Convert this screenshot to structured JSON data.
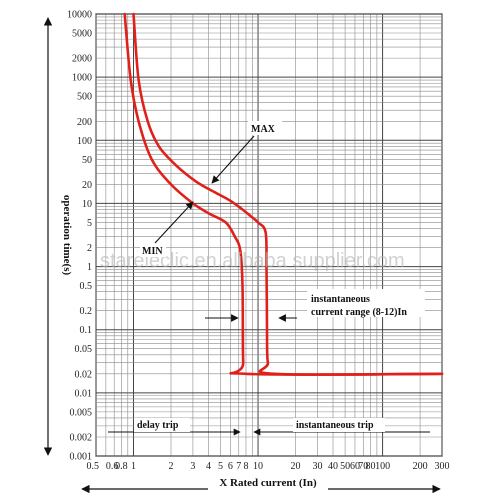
{
  "chart_data": {
    "type": "line",
    "x_scale": "log",
    "y_scale": "log",
    "xlim": [
      0.5,
      300
    ],
    "ylim": [
      0.001,
      10000
    ],
    "grid": true,
    "xlabel": "X Rated current (In)",
    "ylabel": "operation time(s)",
    "x_ticks": [
      "0.5",
      "0.6",
      "0.8",
      "1",
      "2",
      "3",
      "4",
      "5",
      "6",
      "7",
      "8",
      "10",
      "20",
      "30",
      "40",
      "50",
      "60",
      "70",
      "80",
      "100",
      "200",
      "300"
    ],
    "y_ticks": [
      "10000",
      "5000",
      "2000",
      "1000",
      "500",
      "200",
      "100",
      "50",
      "20",
      "10",
      "5",
      "2",
      "1",
      "0.5",
      "0.2",
      "0.1",
      "0.05",
      "0.02",
      "0.01",
      "0.005",
      "0.002",
      "0.001"
    ],
    "series": [
      {
        "name": "MAX",
        "color": "#e0211b",
        "points": [
          [
            1.0,
            10000
          ],
          [
            1.1,
            900
          ],
          [
            1.3,
            200
          ],
          [
            1.6,
            80
          ],
          [
            2.2,
            40
          ],
          [
            3.2,
            22
          ],
          [
            4.5,
            15
          ],
          [
            6.0,
            11
          ],
          [
            7.5,
            8
          ],
          [
            9.0,
            6
          ],
          [
            10.0,
            5
          ],
          [
            11.5,
            3.5
          ],
          [
            11.7,
            1
          ],
          [
            11.8,
            0.1
          ],
          [
            12.0,
            0.03
          ],
          [
            13.5,
            0.02
          ],
          [
            300,
            0.02
          ]
        ]
      },
      {
        "name": "MIN",
        "color": "#e0211b",
        "points": [
          [
            0.85,
            10000
          ],
          [
            0.95,
            900
          ],
          [
            1.1,
            200
          ],
          [
            1.4,
            50
          ],
          [
            2.0,
            20
          ],
          [
            3.0,
            10
          ],
          [
            4.0,
            7
          ],
          [
            5.5,
            5
          ],
          [
            6.5,
            3
          ],
          [
            7.2,
            1.8
          ],
          [
            7.5,
            0.5
          ],
          [
            7.6,
            0.03
          ],
          [
            8.0,
            0.02
          ],
          [
            300,
            0.02
          ]
        ]
      }
    ],
    "annotations": {
      "max": "MAX",
      "min": "MIN",
      "inst_range": "instantaneous current range (8-12)In",
      "inst_range_line1": "instantaneous",
      "inst_range_line2": "current range (8-12)In",
      "delay_trip": "delay trip",
      "inst_trip": "instantaneous trip"
    }
  },
  "watermark": "stareleclic.en.alibaba supplier.com"
}
